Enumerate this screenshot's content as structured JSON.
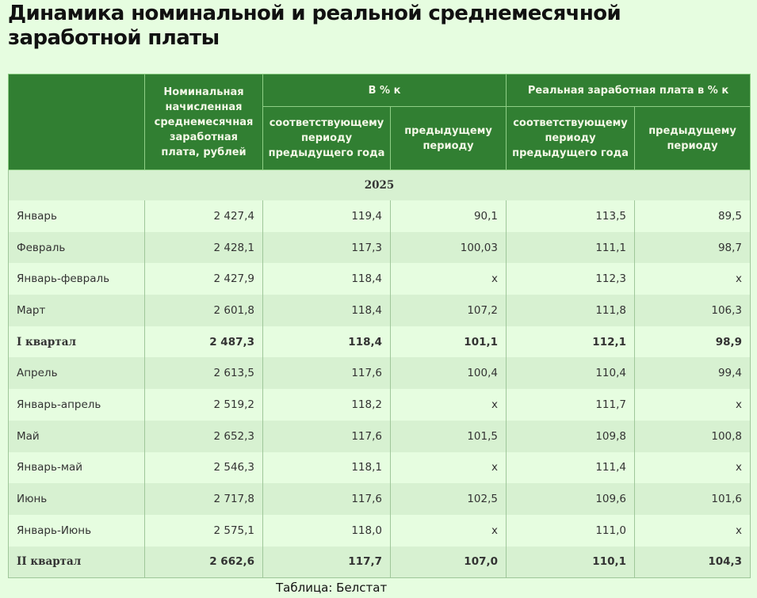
{
  "title": "Динамика номинальной и реальной среднемесячной заработной платы",
  "table": {
    "headers": {
      "col0": "",
      "col1": "Номинальная начисленная среднемесячная заработная плата, рублей",
      "group1": "В % к",
      "group2": "Реальная заработная плата в % к",
      "sub1": "соответствующему периоду предыдущего года",
      "sub2": "предыдущему периоду",
      "sub3": "соответствующему периоду предыдущего года",
      "sub4": "предыдущему периоду"
    },
    "year": "2025",
    "rows": [
      {
        "period": "Январь",
        "nominal": "2 427,4",
        "yoy": "119,4",
        "mom": "90,1",
        "real_yoy": "113,5",
        "real_mom": "89,5",
        "bold": false
      },
      {
        "period": "Февраль",
        "nominal": "2 428,1",
        "yoy": "117,3",
        "mom": "100,03",
        "real_yoy": "111,1",
        "real_mom": "98,7",
        "bold": false
      },
      {
        "period": "Январь-февраль",
        "nominal": "2 427,9",
        "yoy": "118,4",
        "mom": "x",
        "real_yoy": "112,3",
        "real_mom": "x",
        "bold": false
      },
      {
        "period": "Март",
        "nominal": "2 601,8",
        "yoy": "118,4",
        "mom": "107,2",
        "real_yoy": "111,8",
        "real_mom": "106,3",
        "bold": false
      },
      {
        "period": "I квартал",
        "nominal": "2 487,3",
        "yoy": "118,4",
        "mom": "101,1",
        "real_yoy": "112,1",
        "real_mom": "98,9",
        "bold": true
      },
      {
        "period": "Апрель",
        "nominal": "2 613,5",
        "yoy": "117,6",
        "mom": "100,4",
        "real_yoy": "110,4",
        "real_mom": "99,4",
        "bold": false
      },
      {
        "period": "Январь-апрель",
        "nominal": "2 519,2",
        "yoy": "118,2",
        "mom": "x",
        "real_yoy": "111,7",
        "real_mom": "x",
        "bold": false
      },
      {
        "period": "Май",
        "nominal": "2 652,3",
        "yoy": "117,6",
        "mom": "101,5",
        "real_yoy": "109,8",
        "real_mom": "100,8",
        "bold": false
      },
      {
        "period": "Январь-май",
        "nominal": "2 546,3",
        "yoy": "118,1",
        "mom": "x",
        "real_yoy": "111,4",
        "real_mom": "x",
        "bold": false
      },
      {
        "period": "Июнь",
        "nominal": "2 717,8",
        "yoy": "117,6",
        "mom": "102,5",
        "real_yoy": "109,6",
        "real_mom": "101,6",
        "bold": false
      },
      {
        "period": "Январь-Июнь",
        "nominal": "2 575,1",
        "yoy": "118,0",
        "mom": "x",
        "real_yoy": "111,0",
        "real_mom": "x",
        "bold": false
      },
      {
        "period": "II квартал",
        "nominal": "2 662,6",
        "yoy": "117,7",
        "mom": "107,0",
        "real_yoy": "110,1",
        "real_mom": "104,3",
        "bold": true
      }
    ]
  },
  "source": "Таблица: Белстат",
  "colors": {
    "header_bg": "#317f32",
    "header_text": "#f3f7e6",
    "page_bg": "#e6fde0",
    "row_alt_bg": "#d7f1d1"
  }
}
